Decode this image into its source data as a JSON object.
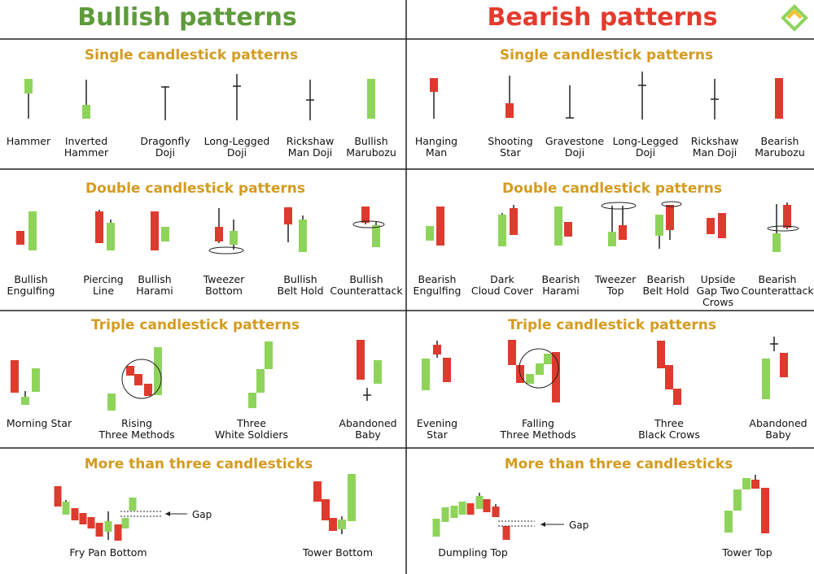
{
  "headers": {
    "bullish": "Bullish patterns",
    "bearish": "Bearish patterns"
  },
  "sections": {
    "single": "Single candlestick patterns",
    "double": "Double candlestick patterns",
    "triple": "Triple candlestick patterns",
    "more": "More than three candlesticks"
  },
  "colors": {
    "bull": "#8fd45a",
    "bear": "#dd3b2e",
    "section": "#d49b1f",
    "bull_header": "#5e9b3a",
    "bear_header": "#e33b2e"
  },
  "labels": {
    "bull_single": [
      "Hammer",
      "Inverted\nHammer",
      "Dragonfly\nDoji",
      "Long-Legged\nDoji",
      "Rickshaw\nMan Doji",
      "Bullish\nMarubozu"
    ],
    "bear_single": [
      "Hanging\nMan",
      "Shooting\nStar",
      "Gravestone\nDoji",
      "Long-Legged\nDoji",
      "Rickshaw\nMan Doji",
      "Bearish\nMarubozu"
    ],
    "bull_double": [
      "Bullish\nEngulfing",
      "Piercing\nLine",
      "Bullish\nHarami",
      "Tweezer\nBottom",
      "Bullish\nBelt Hold",
      "Bullish\nCounterattack"
    ],
    "bear_double": [
      "Bearish\nEngulfing",
      "Dark\nCloud Cover",
      "Bearish\nHarami",
      "Tweezer\nTop",
      "Bearish\nBelt Hold",
      "Upside\nGap Two\nCrows",
      "Bearish\nCounterattack"
    ],
    "bull_triple": [
      "Morning Star",
      "Rising\nThree Methods",
      "Three\nWhite Soldiers",
      "Abandoned\nBaby"
    ],
    "bear_triple": [
      "Evening\nStar",
      "Falling\nThree Methods",
      "Three\nBlack Crows",
      "Abandoned\nBaby"
    ],
    "bull_more": [
      "Fry Pan Bottom",
      "Tower Bottom"
    ],
    "bear_more": [
      "Dumpling Top",
      "Tower Top"
    ],
    "gap": "Gap"
  },
  "icons": {
    "logo": "litefinance-logo-icon"
  }
}
